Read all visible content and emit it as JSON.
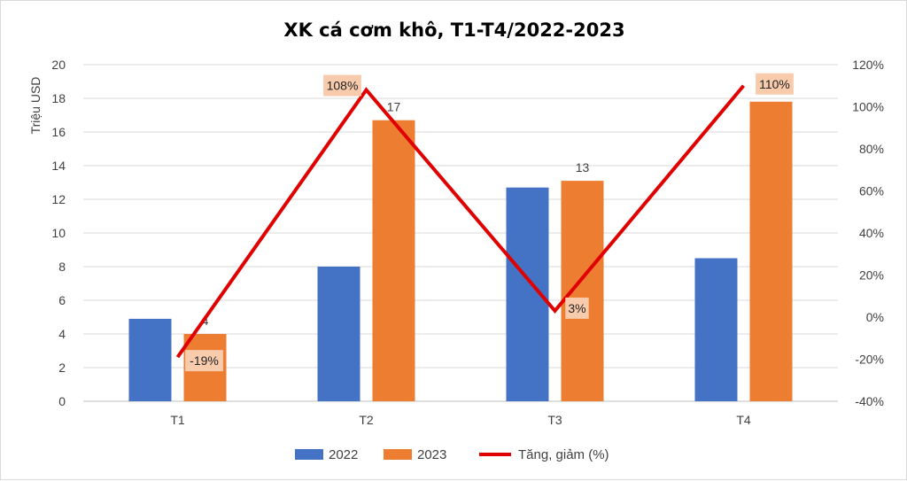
{
  "chart_data": {
    "type": "bar",
    "title": "XK cá cơm khô, T1-T4/2022-2023",
    "ylabel": "Triệu USD",
    "categories": [
      "T1",
      "T2",
      "T3",
      "T4"
    ],
    "ylim": [
      0,
      20
    ],
    "yticks": [
      "0",
      "2",
      "4",
      "6",
      "8",
      "10",
      "12",
      "14",
      "16",
      "18",
      "20"
    ],
    "y2lim": [
      -40,
      120
    ],
    "y2ticks": [
      "-40%",
      "-20%",
      "0%",
      "20%",
      "40%",
      "60%",
      "80%",
      "100%",
      "120%"
    ],
    "series": [
      {
        "name": "2022",
        "type": "bar",
        "color": "#4472C4",
        "values": [
          4.9,
          8.0,
          12.7,
          8.5
        ]
      },
      {
        "name": "2023",
        "type": "bar",
        "color": "#ED7D31",
        "values": [
          4.0,
          16.7,
          13.1,
          17.8
        ],
        "data_labels": [
          "4",
          "17",
          "13",
          ""
        ]
      },
      {
        "name": "Tăng, giảm (%)",
        "type": "line",
        "axis": "secondary",
        "color": "#E00000",
        "values": [
          -19,
          108,
          3,
          110
        ],
        "data_labels": [
          "-19%",
          "108%",
          "3%",
          "110%"
        ]
      }
    ],
    "grid": true,
    "legend": "bottom"
  }
}
